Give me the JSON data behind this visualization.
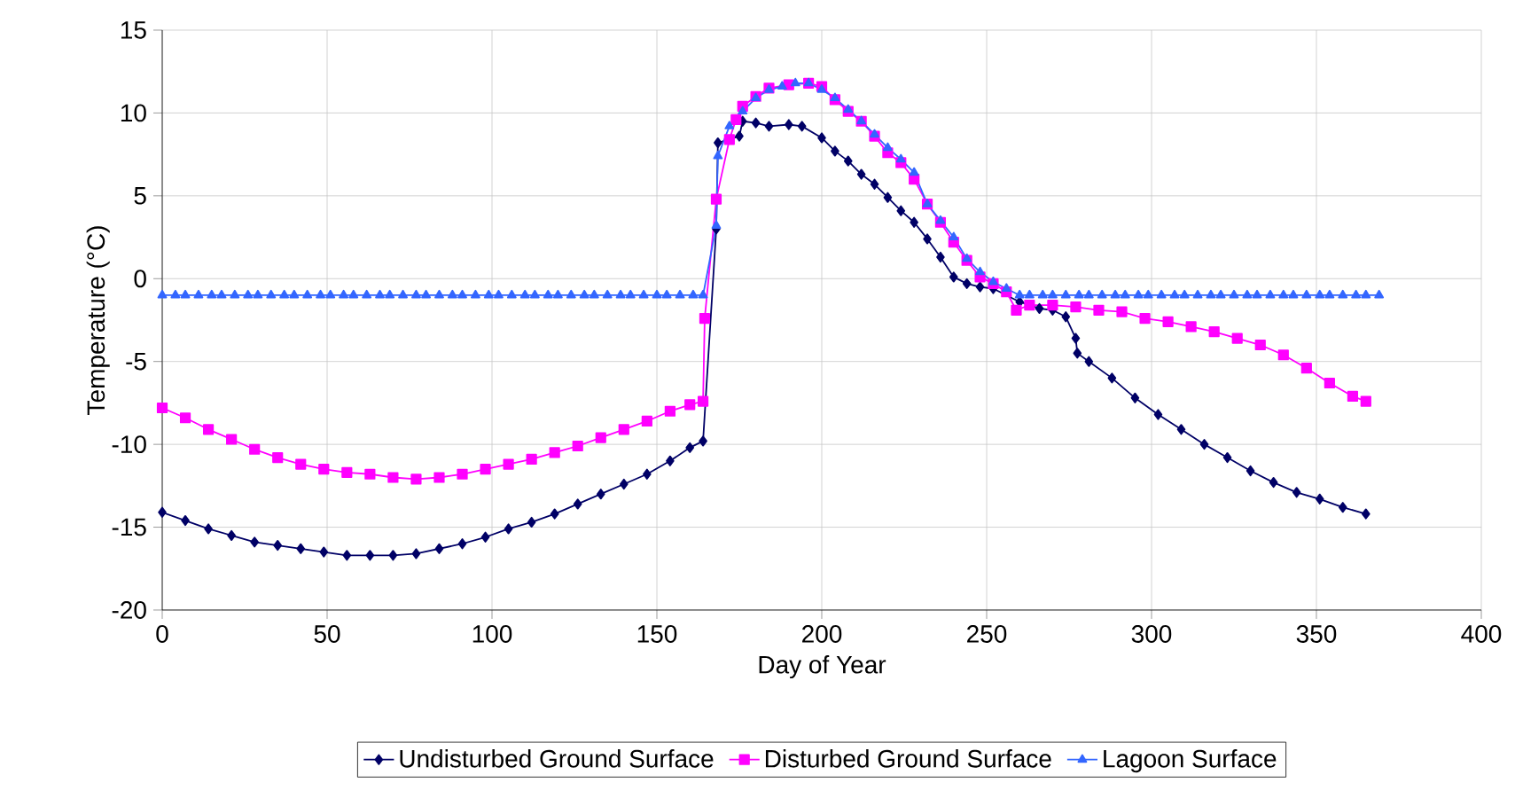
{
  "chart_data": {
    "type": "line",
    "xlabel": "Day of Year",
    "ylabel": "Temperature (°C)",
    "xlim": [
      0,
      400
    ],
    "ylim": [
      -20,
      15
    ],
    "xticks": [
      0,
      50,
      100,
      150,
      200,
      250,
      300,
      350,
      400
    ],
    "yticks": [
      -20,
      -15,
      -10,
      -5,
      0,
      5,
      10,
      15
    ],
    "grid": true,
    "legend": "bottom",
    "series": [
      {
        "name": "Undisturbed Ground Surface",
        "color": "#000066",
        "marker": "diamond",
        "x": [
          0,
          7,
          14,
          21,
          28,
          35,
          42,
          49,
          56,
          63,
          70,
          77,
          84,
          91,
          98,
          105,
          112,
          119,
          126,
          133,
          140,
          147,
          154,
          160,
          164,
          168,
          168.5,
          175,
          176,
          180,
          184,
          190,
          194,
          200,
          204,
          208,
          212,
          216,
          220,
          224,
          228,
          232,
          236,
          240,
          244,
          248,
          252,
          260,
          266,
          270,
          274,
          277,
          277.5,
          281,
          288,
          295,
          302,
          309,
          316,
          323,
          330,
          337,
          344,
          351,
          358,
          365
        ],
        "values": [
          -14.1,
          -14.6,
          -15.1,
          -15.5,
          -15.9,
          -16.1,
          -16.3,
          -16.5,
          -16.7,
          -16.7,
          -16.7,
          -16.6,
          -16.3,
          -16.0,
          -15.6,
          -15.1,
          -14.7,
          -14.2,
          -13.6,
          -13.0,
          -12.4,
          -11.8,
          -11.0,
          -10.2,
          -9.8,
          3.0,
          8.2,
          8.6,
          9.5,
          9.4,
          9.2,
          9.3,
          9.2,
          8.5,
          7.7,
          7.1,
          6.3,
          5.7,
          4.9,
          4.1,
          3.4,
          2.4,
          1.3,
          0.1,
          -0.3,
          -0.5,
          -0.6,
          -1.4,
          -1.8,
          -1.9,
          -2.3,
          -3.6,
          -4.5,
          -5.0,
          -6.0,
          -7.2,
          -8.2,
          -9.1,
          -10.0,
          -10.8,
          -11.6,
          -12.3,
          -12.9,
          -13.3,
          -13.8,
          -14.2
        ]
      },
      {
        "name": "Disturbed Ground Surface",
        "color": "#ff00ff",
        "marker": "square",
        "x": [
          0,
          7,
          14,
          21,
          28,
          35,
          42,
          49,
          56,
          63,
          70,
          77,
          84,
          91,
          98,
          105,
          112,
          119,
          126,
          133,
          140,
          147,
          154,
          160,
          164,
          164.5,
          168,
          172,
          174,
          176,
          180,
          184,
          190,
          196,
          200,
          204,
          208,
          212,
          216,
          220,
          224,
          228,
          232,
          236,
          240,
          244,
          248,
          252,
          256,
          259,
          263,
          270,
          277,
          284,
          291,
          298,
          305,
          312,
          319,
          326,
          333,
          340,
          347,
          354,
          361,
          365
        ],
        "values": [
          -7.8,
          -8.4,
          -9.1,
          -9.7,
          -10.3,
          -10.8,
          -11.2,
          -11.5,
          -11.7,
          -11.8,
          -12.0,
          -12.1,
          -12.0,
          -11.8,
          -11.5,
          -11.2,
          -10.9,
          -10.5,
          -10.1,
          -9.6,
          -9.1,
          -8.6,
          -8.0,
          -7.6,
          -7.4,
          -2.4,
          4.8,
          8.4,
          9.6,
          10.4,
          11.0,
          11.5,
          11.7,
          11.8,
          11.6,
          10.8,
          10.1,
          9.5,
          8.6,
          7.6,
          7.0,
          6.0,
          4.5,
          3.4,
          2.2,
          1.1,
          0.1,
          -0.3,
          -0.8,
          -1.9,
          -1.6,
          -1.6,
          -1.7,
          -1.9,
          -2.0,
          -2.4,
          -2.6,
          -2.9,
          -3.2,
          -3.6,
          -4.0,
          -4.6,
          -5.4,
          -6.3,
          -7.1,
          -7.4
        ]
      },
      {
        "name": "Lagoon Surface",
        "color": "#3366ff",
        "marker": "triangle",
        "x": [
          0,
          4,
          7,
          11,
          15,
          18,
          22,
          26,
          29,
          33,
          37,
          40,
          44,
          48,
          51,
          55,
          58,
          62,
          66,
          69,
          73,
          77,
          80,
          84,
          88,
          91,
          95,
          99,
          102,
          106,
          110,
          113,
          117,
          120,
          124,
          128,
          131,
          135,
          139,
          142,
          146,
          150,
          153,
          157,
          161,
          164,
          168,
          168.5,
          172,
          176,
          180,
          184,
          188,
          192,
          196,
          200,
          204,
          208,
          212,
          216,
          220,
          224,
          228,
          232,
          236,
          240,
          244,
          248,
          252,
          256,
          260,
          263,
          267,
          270,
          274,
          278,
          281,
          285,
          289,
          292,
          296,
          299,
          303,
          307,
          310,
          314,
          318,
          321,
          325,
          329,
          332,
          336,
          340,
          343,
          347,
          351,
          354,
          358,
          362,
          365,
          369
        ],
        "values": [
          -1,
          -1,
          -1,
          -1,
          -1,
          -1,
          -1,
          -1,
          -1,
          -1,
          -1,
          -1,
          -1,
          -1,
          -1,
          -1,
          -1,
          -1,
          -1,
          -1,
          -1,
          -1,
          -1,
          -1,
          -1,
          -1,
          -1,
          -1,
          -1,
          -1,
          -1,
          -1,
          -1,
          -1,
          -1,
          -1,
          -1,
          -1,
          -1,
          -1,
          -1,
          -1,
          -1,
          -1,
          -1,
          -1,
          3.2,
          7.4,
          9.2,
          10.1,
          10.9,
          11.4,
          11.6,
          11.8,
          11.8,
          11.4,
          10.9,
          10.2,
          9.5,
          8.7,
          7.9,
          7.2,
          6.4,
          4.5,
          3.5,
          2.5,
          1.2,
          0.4,
          -0.2,
          -0.6,
          -1,
          -1,
          -1,
          -1,
          -1,
          -1,
          -1,
          -1,
          -1,
          -1,
          -1,
          -1,
          -1,
          -1,
          -1,
          -1,
          -1,
          -1,
          -1,
          -1,
          -1,
          -1,
          -1,
          -1,
          -1,
          -1,
          -1,
          -1,
          -1,
          -1,
          -1
        ]
      }
    ]
  }
}
